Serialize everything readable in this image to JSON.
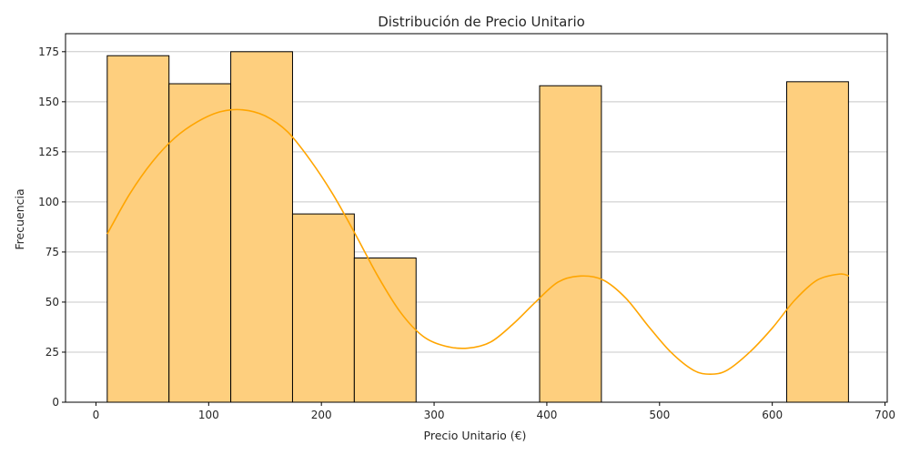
{
  "chart_data": {
    "type": "bar",
    "title": "Distribución de Precio Unitario",
    "xlabel": "Precio Unitario (€)",
    "ylabel": "Frecuencia",
    "xlim": [
      -27,
      702
    ],
    "ylim": [
      0,
      184
    ],
    "xticks": [
      0,
      100,
      200,
      300,
      400,
      500,
      600,
      700
    ],
    "yticks": [
      0,
      25,
      50,
      75,
      100,
      125,
      150,
      175
    ],
    "grid": {
      "axis": "y",
      "enabled": true
    },
    "legend": null,
    "bins": [
      {
        "x0": 10,
        "x1": 64.8,
        "count": 173
      },
      {
        "x0": 64.8,
        "x1": 119.6,
        "count": 159
      },
      {
        "x0": 119.6,
        "x1": 174.4,
        "count": 175
      },
      {
        "x0": 174.4,
        "x1": 229.2,
        "count": 94
      },
      {
        "x0": 229.2,
        "x1": 284.0,
        "count": 72
      },
      {
        "x0": 284.0,
        "x1": 338.8,
        "count": 0
      },
      {
        "x0": 338.8,
        "x1": 393.6,
        "count": 0
      },
      {
        "x0": 393.6,
        "x1": 448.4,
        "count": 158
      },
      {
        "x0": 448.4,
        "x1": 503.2,
        "count": 0
      },
      {
        "x0": 503.2,
        "x1": 558.0,
        "count": 0
      },
      {
        "x0": 558.0,
        "x1": 612.8,
        "count": 0
      },
      {
        "x0": 612.8,
        "x1": 667.6,
        "count": 160
      }
    ],
    "kde": {
      "x": [
        10,
        30,
        50,
        70,
        90,
        110,
        130,
        150,
        170,
        190,
        210,
        230,
        250,
        270,
        290,
        310,
        330,
        350,
        370,
        390,
        410,
        430,
        450,
        470,
        490,
        510,
        530,
        545,
        560,
        580,
        600,
        620,
        640,
        660,
        668
      ],
      "y": [
        84,
        104,
        120,
        132,
        140,
        145,
        146,
        143,
        135,
        121,
        104,
        84,
        63,
        45,
        33,
        28,
        27,
        30,
        39,
        50,
        60,
        63,
        61,
        52,
        38,
        25,
        16,
        14,
        16,
        25,
        37,
        51,
        61,
        64,
        63
      ]
    },
    "colors": {
      "bar_fill": "#fecf7e",
      "bar_edge": "#000000",
      "kde_line": "#ffa500",
      "grid": "#c8c8c8",
      "axis": "#000000",
      "text": "#262626"
    }
  }
}
